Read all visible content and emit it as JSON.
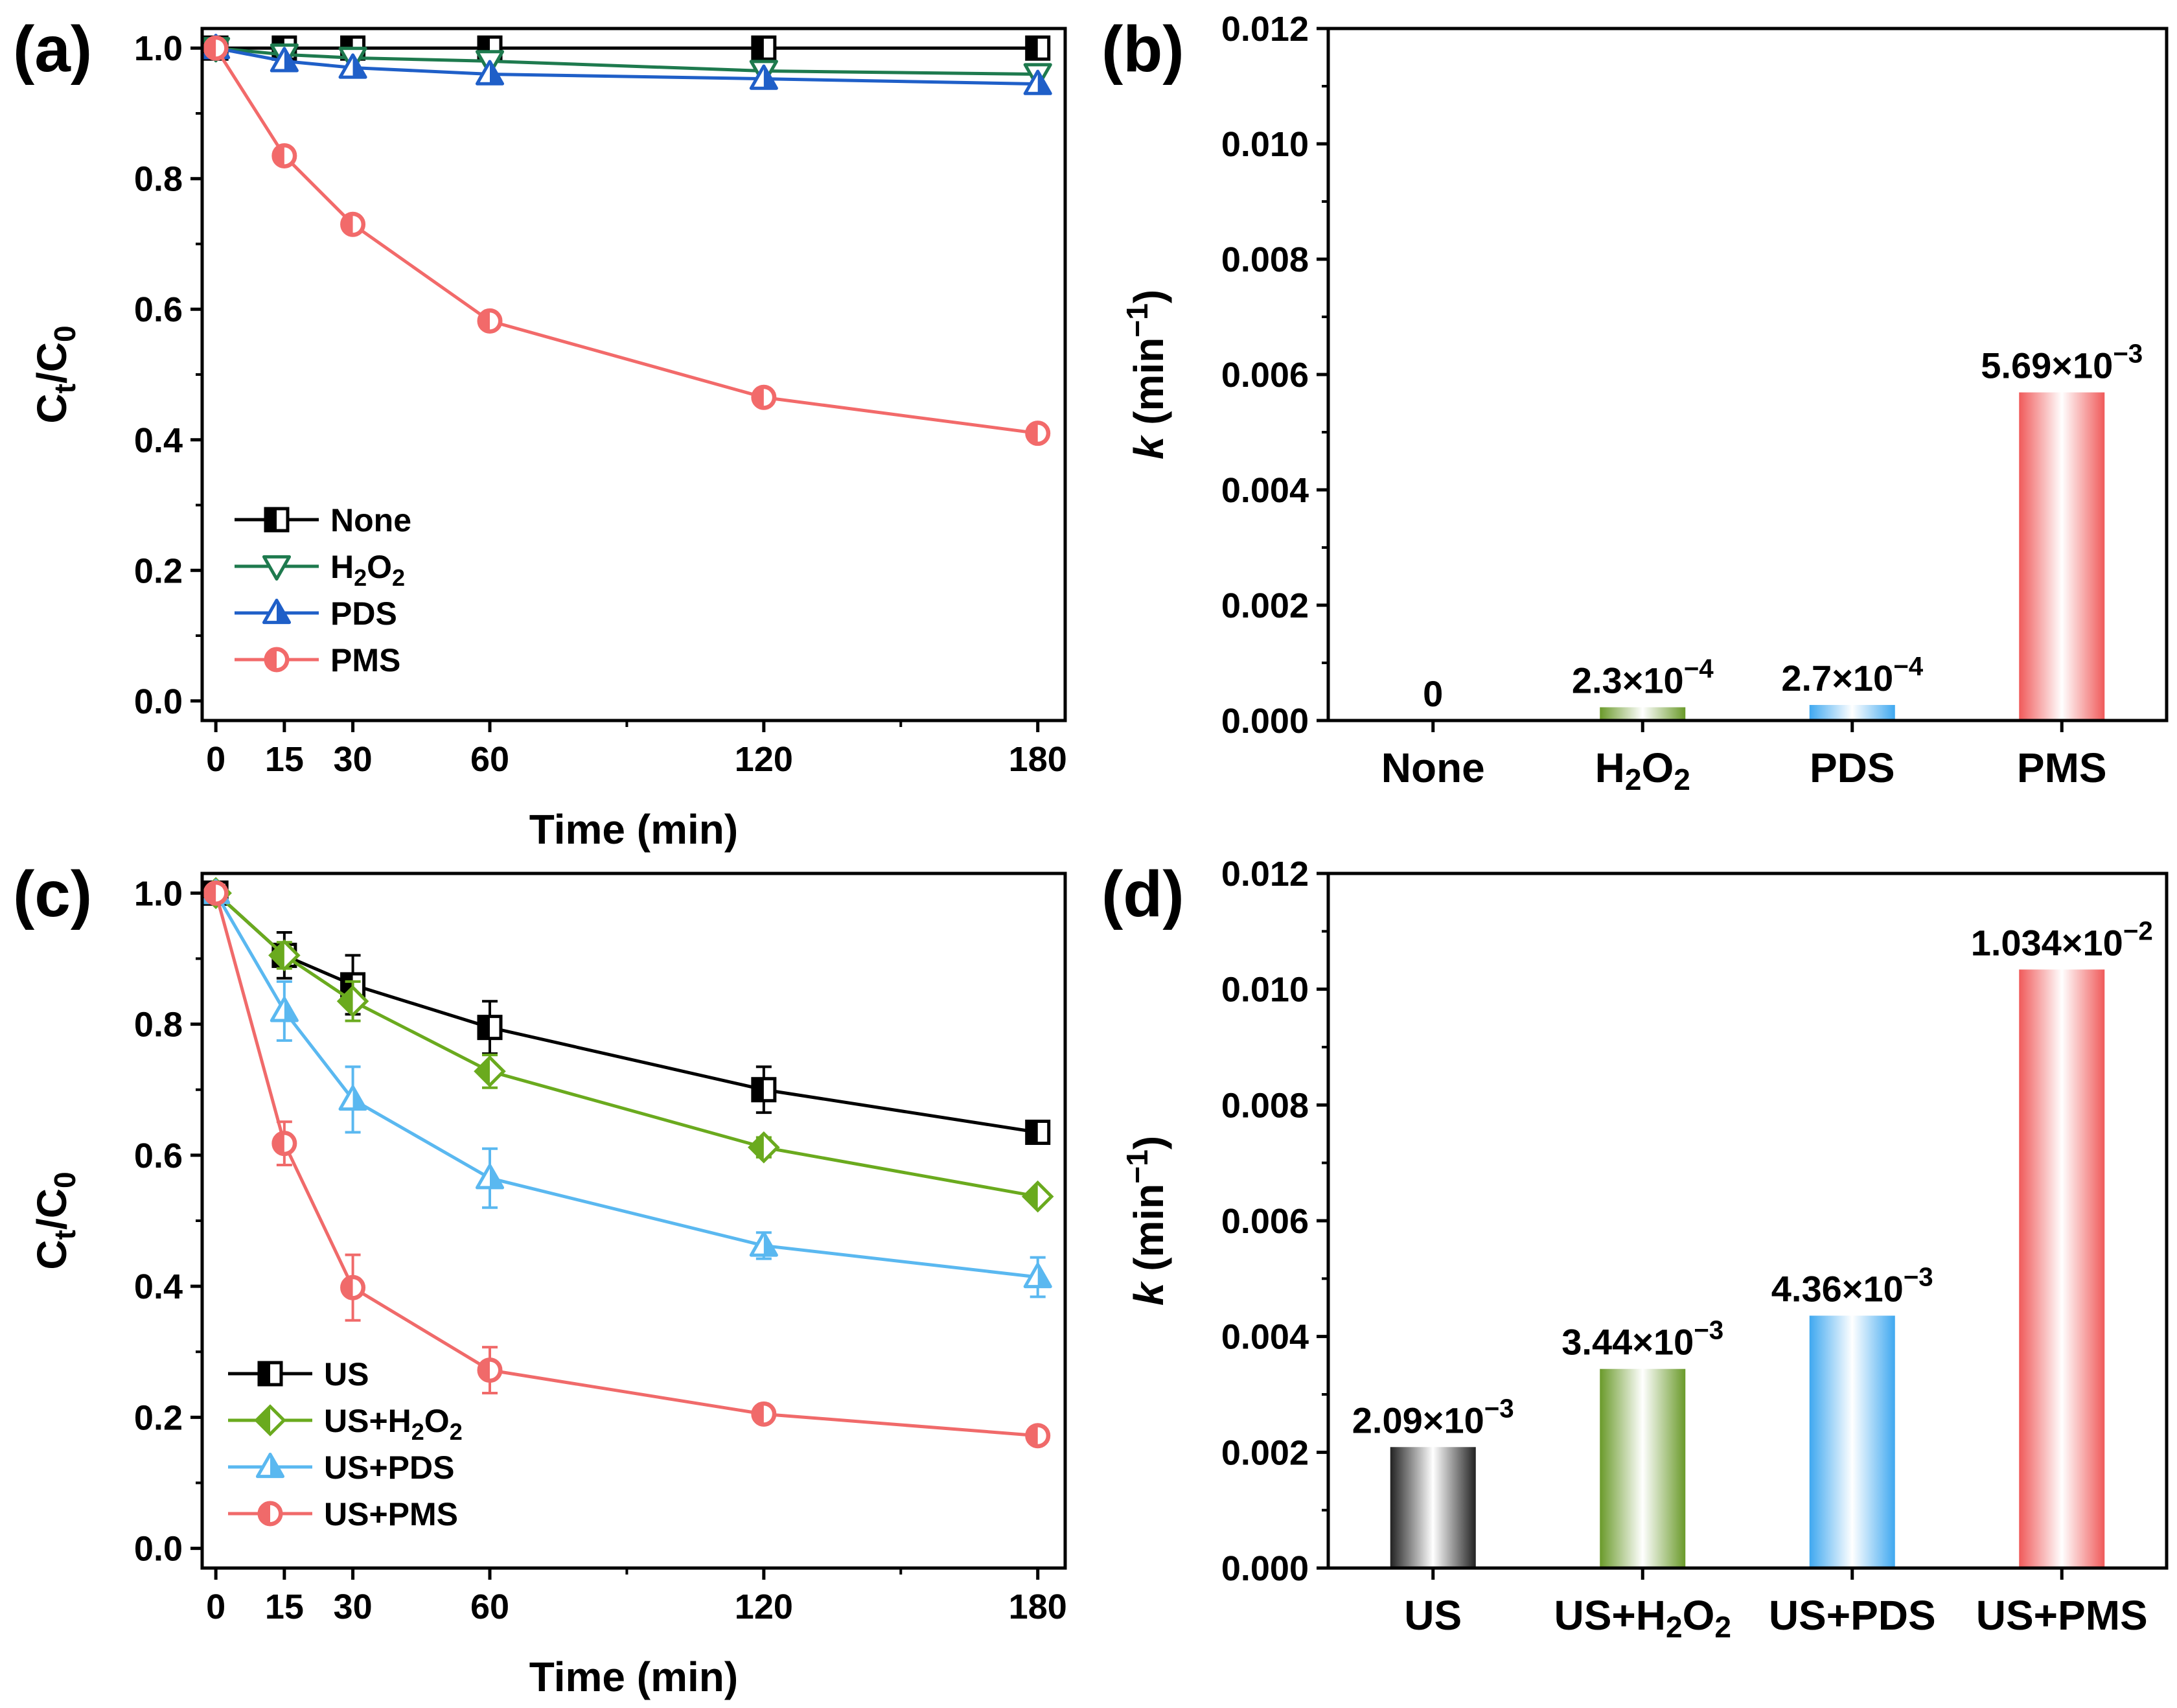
{
  "chart_data": [
    {
      "panel": "(a)",
      "type": "line",
      "xlabel": "Time (min)",
      "ylabel": {
        "base": "C",
        "sub1": "t",
        "slash": "/C",
        "sub2": "0"
      },
      "x": [
        0,
        15,
        30,
        60,
        120,
        180
      ],
      "xticks": [
        "0",
        "15",
        "30",
        "60",
        "120",
        "180"
      ],
      "ylim": [
        -0.03,
        1.03
      ],
      "yticks": [
        "0.0",
        "0.2",
        "0.4",
        "0.6",
        "0.8",
        "1.0"
      ],
      "series": [
        {
          "name": "None",
          "legend": {
            "base": "None",
            "sub": "",
            "tail": ""
          },
          "color": "#000000",
          "marker": "square",
          "values": [
            1.0,
            1.0,
            1.0,
            1.0,
            1.0,
            1.0
          ]
        },
        {
          "name": "H2O2",
          "legend": {
            "base": "H",
            "sub": "2",
            "tail": "O",
            "sub2": "2"
          },
          "color": "#1e7a4e",
          "marker": "triangle-down",
          "values": [
            1.0,
            0.99,
            0.985,
            0.98,
            0.965,
            0.96
          ]
        },
        {
          "name": "PDS",
          "legend": {
            "base": "PDS",
            "sub": "",
            "tail": ""
          },
          "color": "#1f5fc8",
          "marker": "triangle-up",
          "values": [
            1.0,
            0.98,
            0.97,
            0.96,
            0.953,
            0.945
          ]
        },
        {
          "name": "PMS",
          "legend": {
            "base": "PMS",
            "sub": "",
            "tail": ""
          },
          "color": "#f26a6a",
          "marker": "circle",
          "values": [
            1.0,
            0.835,
            0.73,
            0.582,
            0.465,
            0.41
          ]
        }
      ]
    },
    {
      "panel": "(b)",
      "type": "bar",
      "ylabel": {
        "italic": "k",
        "rest": " (min",
        "sup": "−1",
        "close": ")"
      },
      "ylim": [
        0,
        0.012
      ],
      "yticks": [
        "0.000",
        "0.002",
        "0.004",
        "0.006",
        "0.008",
        "0.010",
        "0.012"
      ],
      "categories": [
        {
          "base": "None",
          "sub": "",
          "tail": "",
          "sub2": ""
        },
        {
          "base": "H",
          "sub": "2",
          "tail": "O",
          "sub2": "2"
        },
        {
          "base": "PDS",
          "sub": "",
          "tail": "",
          "sub2": ""
        },
        {
          "base": "PMS",
          "sub": "",
          "tail": "",
          "sub2": ""
        }
      ],
      "values": [
        0,
        0.00023,
        0.00027,
        0.00569
      ],
      "colors": [
        "#222222",
        "#6a9a2a",
        "#3fa8f0",
        "#f05a5a"
      ],
      "data_labels": [
        {
          "mant": "0",
          "exp": ""
        },
        {
          "mant": "2.3×10",
          "exp": "−4"
        },
        {
          "mant": "2.7×10",
          "exp": "−4"
        },
        {
          "mant": "5.69×10",
          "exp": "−3"
        }
      ]
    },
    {
      "panel": "(c)",
      "type": "line",
      "xlabel": "Time (min)",
      "ylabel": {
        "base": "C",
        "sub1": "t",
        "slash": "/C",
        "sub2": "0"
      },
      "x": [
        0,
        15,
        30,
        60,
        120,
        180
      ],
      "xticks": [
        "0",
        "15",
        "30",
        "60",
        "120",
        "180"
      ],
      "ylim": [
        -0.03,
        1.03
      ],
      "yticks": [
        "0.0",
        "0.2",
        "0.4",
        "0.6",
        "0.8",
        "1.0"
      ],
      "series": [
        {
          "name": "US",
          "legend": {
            "base": "US",
            "sub": "",
            "tail": ""
          },
          "color": "#000000",
          "marker": "square",
          "values": [
            1.0,
            0.905,
            0.86,
            0.795,
            0.7,
            0.635
          ],
          "errors": [
            0,
            0.035,
            0.045,
            0.04,
            0.035,
            0.01
          ]
        },
        {
          "name": "US+H2O2",
          "legend": {
            "base": "US+H",
            "sub": "2",
            "tail": "O",
            "sub2": "2"
          },
          "color": "#6aaa1e",
          "marker": "diamond",
          "values": [
            1.0,
            0.905,
            0.835,
            0.728,
            0.612,
            0.537
          ],
          "errors": [
            0,
            0.02,
            0.03,
            0.025,
            0.015,
            0.01
          ]
        },
        {
          "name": "US+PDS",
          "legend": {
            "base": "US+PDS",
            "sub": "",
            "tail": ""
          },
          "color": "#5ab8f0",
          "marker": "triangle-up",
          "values": [
            1.0,
            0.82,
            0.685,
            0.565,
            0.462,
            0.414
          ],
          "errors": [
            0,
            0.045,
            0.05,
            0.045,
            0.02,
            0.03
          ]
        },
        {
          "name": "US+PMS",
          "legend": {
            "base": "US+PMS",
            "sub": "",
            "tail": ""
          },
          "color": "#f06a6a",
          "marker": "circle",
          "values": [
            1.0,
            0.618,
            0.398,
            0.272,
            0.205,
            0.172
          ],
          "errors": [
            0,
            0.033,
            0.05,
            0.035,
            0.01,
            0.01
          ]
        }
      ]
    },
    {
      "panel": "(d)",
      "type": "bar",
      "ylabel": {
        "italic": "k",
        "rest": " (min",
        "sup": "−1",
        "close": ")"
      },
      "ylim": [
        0,
        0.012
      ],
      "yticks": [
        "0.000",
        "0.002",
        "0.004",
        "0.006",
        "0.008",
        "0.010",
        "0.012"
      ],
      "categories": [
        {
          "base": "US",
          "sub": "",
          "tail": "",
          "sub2": ""
        },
        {
          "base": "US+H",
          "sub": "2",
          "tail": "O",
          "sub2": "2"
        },
        {
          "base": "US+PDS",
          "sub": "",
          "tail": "",
          "sub2": ""
        },
        {
          "base": "US+PMS",
          "sub": "",
          "tail": "",
          "sub2": ""
        }
      ],
      "values": [
        0.00209,
        0.00344,
        0.00436,
        0.01034
      ],
      "colors": [
        "#222222",
        "#6a9a2a",
        "#3fa8f0",
        "#f05a5a"
      ],
      "data_labels": [
        {
          "mant": "2.09×10",
          "exp": "−3"
        },
        {
          "mant": "3.44×10",
          "exp": "−3"
        },
        {
          "mant": "4.36×10",
          "exp": "−3"
        },
        {
          "mant": "1.034×10",
          "exp": "−2"
        }
      ]
    }
  ]
}
